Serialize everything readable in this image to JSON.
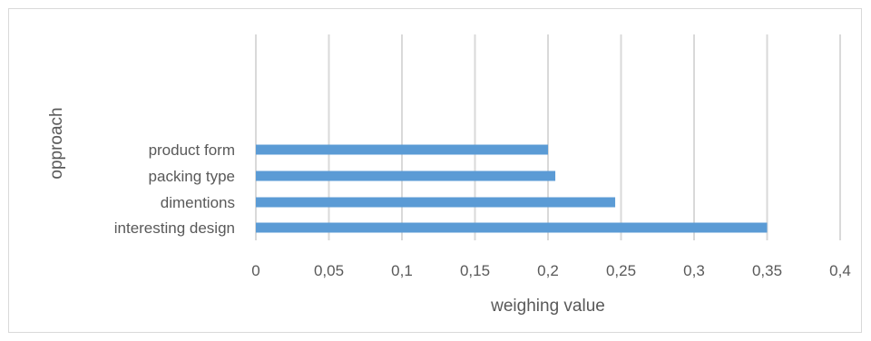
{
  "chart_data": {
    "type": "bar",
    "orientation": "horizontal",
    "categories": [
      "interesting design",
      "dimentions",
      "packing type",
      "product form"
    ],
    "values": [
      0.35,
      0.246,
      0.205,
      0.2
    ],
    "xlabel": "weighing value",
    "ylabel": "opproach",
    "xlim": [
      0,
      0.4
    ],
    "xticks": [
      "0",
      "0,05",
      "0,1",
      "0,15",
      "0,2",
      "0,25",
      "0,3",
      "0,35",
      "0,4"
    ],
    "grid": true,
    "legend": "none",
    "bar_color": "#5b9bd5",
    "grid_color": "#d9d9d9"
  }
}
